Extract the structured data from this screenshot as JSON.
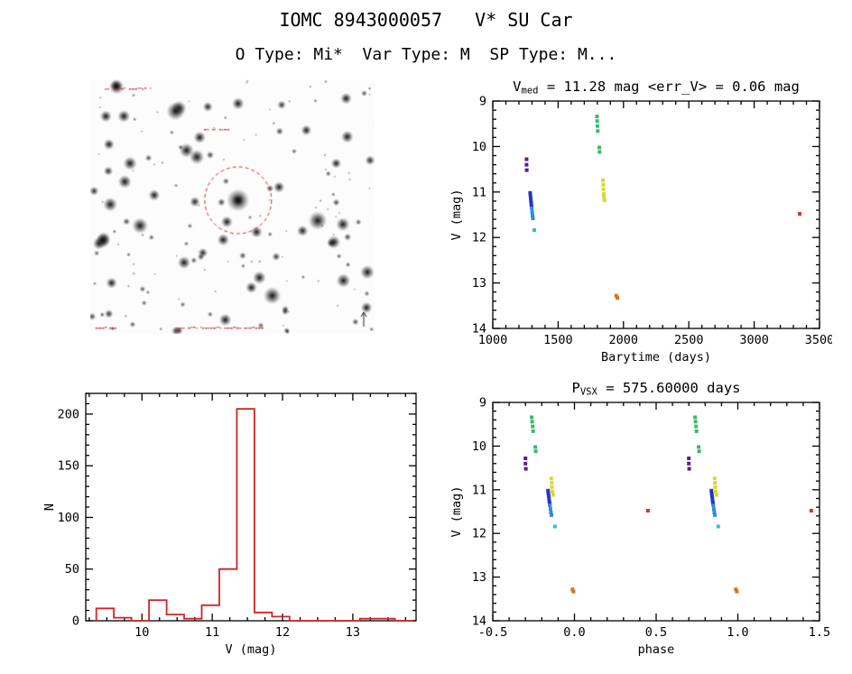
{
  "page": {
    "title": "IOMC 8943000057   V* SU Car",
    "subtitle": "O Type: Mi*  Var Type: M  SP Type: M..."
  },
  "colors": {
    "histogram_red": "#cd2626",
    "finder_circle_red": "#c03434",
    "axis_black": "#000000"
  },
  "chart_data": [
    {
      "id": "lightcurve",
      "type": "scatter",
      "title_parts": [
        {
          "t": "V",
          "sub": false
        },
        {
          "t": "med",
          "sub": true
        },
        {
          "t": " = 11.28 mag <err_V> = 0.06 mag",
          "sub": false
        }
      ],
      "xlabel": "Barytime (days)",
      "ylabel": "V (mag)",
      "xlim": [
        1000,
        3500
      ],
      "ylim": [
        9,
        14
      ],
      "y_inverted": true,
      "xticks": [
        1000,
        1500,
        2000,
        2500,
        3000,
        3500
      ],
      "xtick_labels": [
        "1000",
        "1500",
        "2000",
        "2500",
        "3000",
        "3500"
      ],
      "yticks": [
        9,
        10,
        11,
        12,
        13,
        14
      ],
      "ytick_labels": [
        "9",
        "10",
        "11",
        "12",
        "13",
        "14"
      ],
      "x_minor": 5,
      "y_minor": 5,
      "legend": "none",
      "grid": false,
      "series": [
        {
          "name": "epoch-1-purple",
          "color": "#5a1d8c",
          "points": [
            [
              1258,
              10.28
            ],
            [
              1258,
              10.4
            ],
            [
              1260,
              10.52
            ]
          ]
        },
        {
          "name": "epoch-2-blue",
          "color": "#2636c8",
          "points": [
            [
              1286,
              11.02
            ],
            [
              1288,
              11.08
            ],
            [
              1290,
              11.14
            ],
            [
              1292,
              11.2
            ],
            [
              1294,
              11.26
            ],
            [
              1296,
              11.31
            ]
          ]
        },
        {
          "name": "epoch-3-skyblue",
          "color": "#2e8fd5",
          "points": [
            [
              1298,
              11.36
            ],
            [
              1301,
              11.44
            ],
            [
              1304,
              11.52
            ],
            [
              1307,
              11.58
            ]
          ]
        },
        {
          "name": "epoch-4-cyan",
          "color": "#35c0cf",
          "points": [
            [
              1318,
              11.84
            ]
          ]
        },
        {
          "name": "epoch-5-green",
          "color": "#3cb96a",
          "points": [
            [
              1797,
              9.34
            ],
            [
              1799,
              9.44
            ],
            [
              1801,
              9.55
            ],
            [
              1803,
              9.66
            ],
            [
              1815,
              10.02
            ],
            [
              1817,
              10.12
            ]
          ]
        },
        {
          "name": "epoch-6-yellow",
          "color": "#d8d832",
          "points": [
            [
              1843,
              10.74
            ],
            [
              1845,
              10.84
            ],
            [
              1847,
              10.94
            ],
            [
              1849,
              11.04
            ],
            [
              1851,
              11.12
            ],
            [
              1856,
              11.18
            ]
          ]
        },
        {
          "name": "epoch-7-orange",
          "color": "#d9731f",
          "points": [
            [
              1945,
              13.28
            ],
            [
              1953,
              13.33
            ]
          ]
        },
        {
          "name": "epoch-8-red",
          "color": "#c8401f",
          "points": [
            [
              3348,
              11.48
            ]
          ]
        }
      ]
    },
    {
      "id": "histogram",
      "type": "bar",
      "title": "",
      "xlabel": "V (mag)",
      "ylabel": "N",
      "xlim": [
        9.2,
        13.9
      ],
      "ylim": [
        0,
        220
      ],
      "y_inverted": false,
      "xticks": [
        10,
        11,
        12,
        13
      ],
      "xtick_labels": [
        "10",
        "11",
        "12",
        "13"
      ],
      "yticks": [
        0,
        50,
        100,
        150,
        200
      ],
      "ytick_labels": [
        "0",
        "50",
        "100",
        "150",
        "200"
      ],
      "x_minor": 4,
      "y_minor": 5,
      "legend": "none",
      "grid": false,
      "color": "#cd2626",
      "bin_edges": [
        9.35,
        9.6,
        9.85,
        10.1,
        10.35,
        10.6,
        10.85,
        11.1,
        11.35,
        11.6,
        11.85,
        12.1,
        12.35,
        12.6,
        12.85,
        13.1,
        13.35,
        13.6,
        13.85
      ],
      "counts": [
        12,
        3,
        0,
        20,
        6,
        2,
        15,
        50,
        205,
        8,
        4,
        0,
        0,
        0,
        0,
        2,
        2,
        0
      ]
    },
    {
      "id": "phase",
      "type": "scatter",
      "title_parts": [
        {
          "t": "P",
          "sub": false
        },
        {
          "t": "VSX",
          "sub": true
        },
        {
          "t": " = 575.60000 days",
          "sub": false
        }
      ],
      "xlabel": "phase",
      "ylabel": "V (mag)",
      "xlim": [
        -0.5,
        1.5
      ],
      "ylim": [
        9,
        14
      ],
      "y_inverted": true,
      "xticks": [
        -0.5,
        0,
        0.5,
        1,
        1.5
      ],
      "xtick_labels": [
        "-0.5",
        "0.0",
        "0.5",
        "1.0",
        "1.5"
      ],
      "yticks": [
        9,
        10,
        11,
        12,
        13,
        14
      ],
      "ytick_labels": [
        "9",
        "10",
        "11",
        "12",
        "13",
        "14"
      ],
      "x_minor": 5,
      "y_minor": 5,
      "legend": "none",
      "grid": false,
      "series": [
        {
          "name": "epoch-1-purple",
          "color": "#5a1d8c",
          "points": [
            [
              -0.3,
              10.28
            ],
            [
              -0.3,
              10.4
            ],
            [
              -0.298,
              10.52
            ],
            [
              0.7,
              10.28
            ],
            [
              0.7,
              10.4
            ],
            [
              0.702,
              10.52
            ]
          ]
        },
        {
          "name": "epoch-2-blue",
          "color": "#2636c8",
          "points": [
            [
              -0.162,
              11.02
            ],
            [
              -0.16,
              11.08
            ],
            [
              -0.158,
              11.14
            ],
            [
              -0.156,
              11.2
            ],
            [
              -0.154,
              11.26
            ],
            [
              -0.152,
              11.31
            ],
            [
              0.838,
              11.02
            ],
            [
              0.84,
              11.08
            ],
            [
              0.842,
              11.14
            ],
            [
              0.844,
              11.2
            ],
            [
              0.846,
              11.26
            ],
            [
              0.848,
              11.31
            ]
          ]
        },
        {
          "name": "epoch-3-skyblue",
          "color": "#2e8fd5",
          "points": [
            [
              -0.15,
              11.36
            ],
            [
              -0.147,
              11.44
            ],
            [
              -0.144,
              11.52
            ],
            [
              -0.141,
              11.58
            ],
            [
              0.85,
              11.36
            ],
            [
              0.853,
              11.44
            ],
            [
              0.856,
              11.52
            ],
            [
              0.859,
              11.58
            ]
          ]
        },
        {
          "name": "epoch-4-cyan",
          "color": "#35c0cf",
          "points": [
            [
              -0.12,
              11.84
            ],
            [
              0.88,
              11.84
            ]
          ]
        },
        {
          "name": "epoch-5-green",
          "color": "#3cb96a",
          "points": [
            [
              -0.262,
              9.34
            ],
            [
              -0.259,
              9.44
            ],
            [
              -0.256,
              9.55
            ],
            [
              -0.253,
              9.66
            ],
            [
              -0.24,
              10.02
            ],
            [
              -0.237,
              10.12
            ],
            [
              0.738,
              9.34
            ],
            [
              0.741,
              9.44
            ],
            [
              0.744,
              9.55
            ],
            [
              0.747,
              9.66
            ],
            [
              0.76,
              10.02
            ],
            [
              0.763,
              10.12
            ]
          ]
        },
        {
          "name": "epoch-6-yellow",
          "color": "#d8d832",
          "points": [
            [
              -0.142,
              10.74
            ],
            [
              -0.14,
              10.84
            ],
            [
              -0.138,
              10.94
            ],
            [
              -0.136,
              11.04
            ],
            [
              -0.131,
              11.12
            ],
            [
              0.858,
              10.74
            ],
            [
              0.86,
              10.84
            ],
            [
              0.862,
              10.94
            ],
            [
              0.864,
              11.04
            ],
            [
              0.869,
              11.12
            ]
          ]
        },
        {
          "name": "epoch-7-orange",
          "color": "#d9731f",
          "points": [
            [
              -0.012,
              13.28
            ],
            [
              -0.006,
              13.33
            ],
            [
              0.988,
              13.28
            ],
            [
              0.994,
              13.33
            ]
          ]
        },
        {
          "name": "epoch-8-red",
          "color": "#c8401f",
          "points": [
            [
              0.45,
              11.48
            ],
            [
              1.45,
              11.48
            ]
          ]
        }
      ]
    }
  ]
}
